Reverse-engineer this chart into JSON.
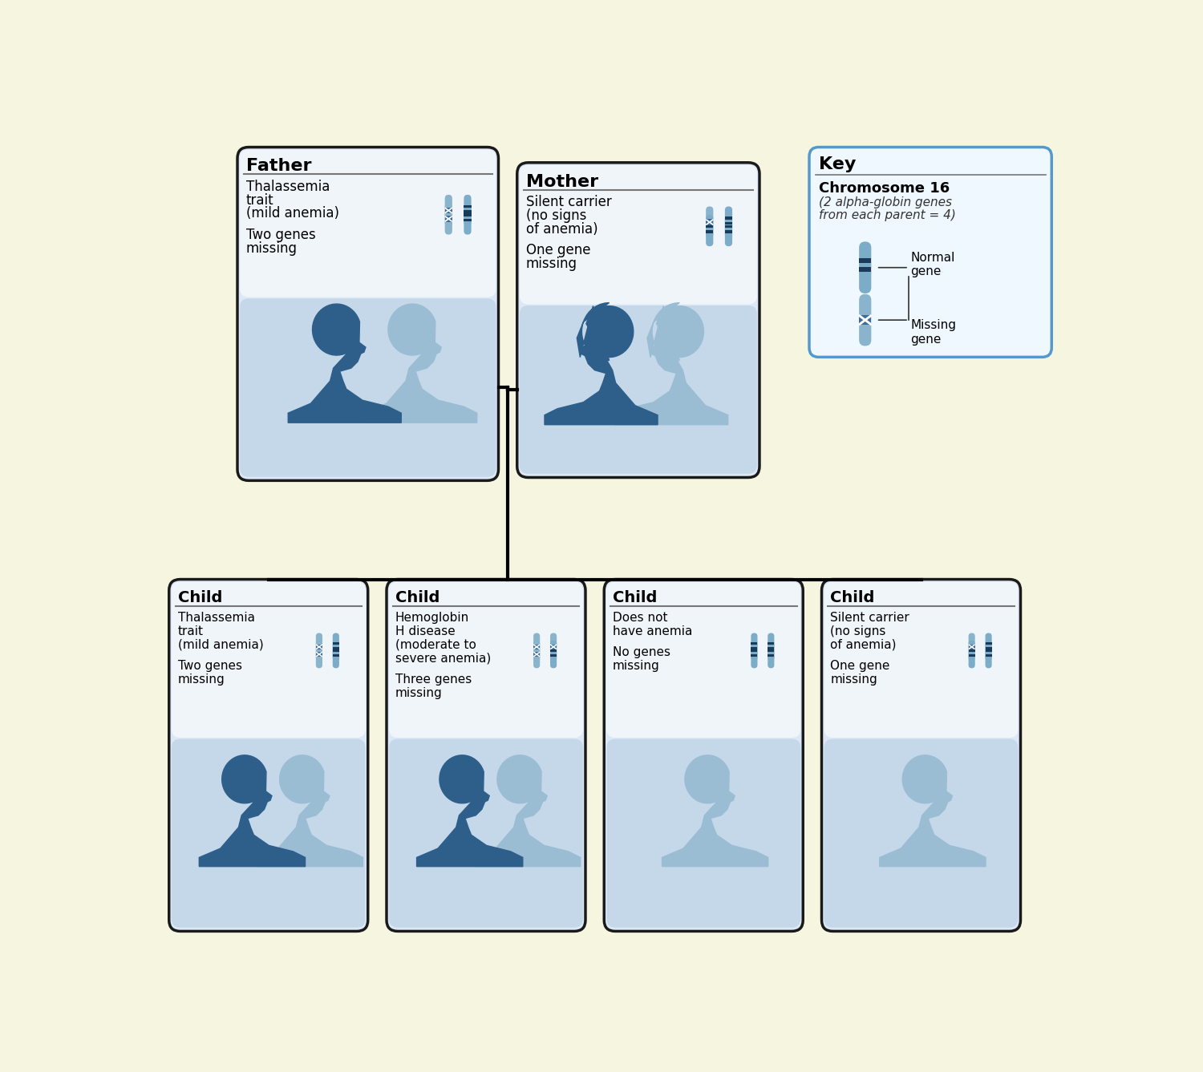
{
  "bg_color": "#f5f5e0",
  "box_bg": "#dce8f5",
  "box_white": "#f0f5fa",
  "sil_bg": "#c5d8ea",
  "chr_body": "#7bacc8",
  "chr_dark": "#1a3a5c",
  "chr_missing_body": "#8ab4cc",
  "chr_missing_band": "#3d6a9a",
  "sil_dark": "#2e5f8a",
  "sil_light": "#9bbdd4",
  "line_color": "#1a1a1a",
  "key_border": "#5599cc",
  "title": "Father",
  "father": {
    "title": "Father",
    "desc": "Thalassemia\ntrait\n(mild anemia)",
    "genes": "Two genes\nmissing",
    "missing": [
      1,
      1,
      0,
      0
    ]
  },
  "mother": {
    "title": "Mother",
    "desc": "Silent carrier\n(no signs\nof anemia)",
    "genes": "One gene\nmissing",
    "missing": [
      1,
      0,
      0,
      0
    ]
  },
  "children": [
    {
      "title": "Child",
      "desc": "Thalassemia\ntrait\n(mild anemia)",
      "genes": "Two genes\nmissing",
      "missing": [
        1,
        1,
        0,
        0
      ],
      "dark_sil": true
    },
    {
      "title": "Child",
      "desc": "Hemoglobin\nH disease\n(moderate to\nsevere anemia)",
      "genes": "Three genes\nmissing",
      "missing": [
        1,
        1,
        1,
        0
      ],
      "dark_sil": true
    },
    {
      "title": "Child",
      "desc": "Does not\nhave anemia",
      "genes": "No genes\nmissing",
      "missing": [
        0,
        0,
        0,
        0
      ],
      "dark_sil": false
    },
    {
      "title": "Child",
      "desc": "Silent carrier\n(no signs\nof anemia)",
      "genes": "One gene\nmissing",
      "missing": [
        1,
        0,
        0,
        0
      ],
      "dark_sil": false
    }
  ]
}
